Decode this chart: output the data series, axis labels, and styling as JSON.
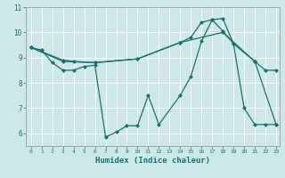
{
  "xlabel": "Humidex (Indice chaleur)",
  "bg_color": "#cce8e8",
  "line_color": "#1a7070",
  "grid_color": "#ffffff",
  "xlim": [
    -0.5,
    23.3
  ],
  "ylim": [
    5.5,
    11.0
  ],
  "yticks": [
    6,
    7,
    8,
    9,
    10,
    11
  ],
  "xticks": [
    0,
    1,
    2,
    3,
    4,
    5,
    6,
    7,
    8,
    9,
    10,
    11,
    12,
    13,
    14,
    15,
    16,
    17,
    18,
    19,
    20,
    21,
    22,
    23
  ],
  "line1": {
    "x": [
      0,
      1,
      2,
      3,
      4,
      5,
      6,
      7,
      8,
      9,
      10,
      11,
      12,
      14,
      15,
      16,
      17,
      18,
      19,
      20,
      21,
      22,
      23
    ],
    "y": [
      9.4,
      9.3,
      8.8,
      8.5,
      8.5,
      8.65,
      8.7,
      5.85,
      6.05,
      6.3,
      6.3,
      7.5,
      6.35,
      7.5,
      8.25,
      9.65,
      10.5,
      10.55,
      9.55,
      7.0,
      6.35,
      6.35,
      6.35
    ]
  },
  "line2": {
    "x": [
      0,
      3,
      4,
      6,
      10,
      14,
      15,
      16,
      17,
      18,
      19,
      21,
      22,
      23
    ],
    "y": [
      9.4,
      8.9,
      8.85,
      8.8,
      8.95,
      9.6,
      9.8,
      10.4,
      10.5,
      10.05,
      9.55,
      8.85,
      8.5,
      8.5
    ]
  },
  "line3": {
    "x": [
      0,
      3,
      6,
      10,
      14,
      18,
      21,
      23
    ],
    "y": [
      9.4,
      8.85,
      8.8,
      8.95,
      9.6,
      10.0,
      8.85,
      6.35
    ]
  }
}
